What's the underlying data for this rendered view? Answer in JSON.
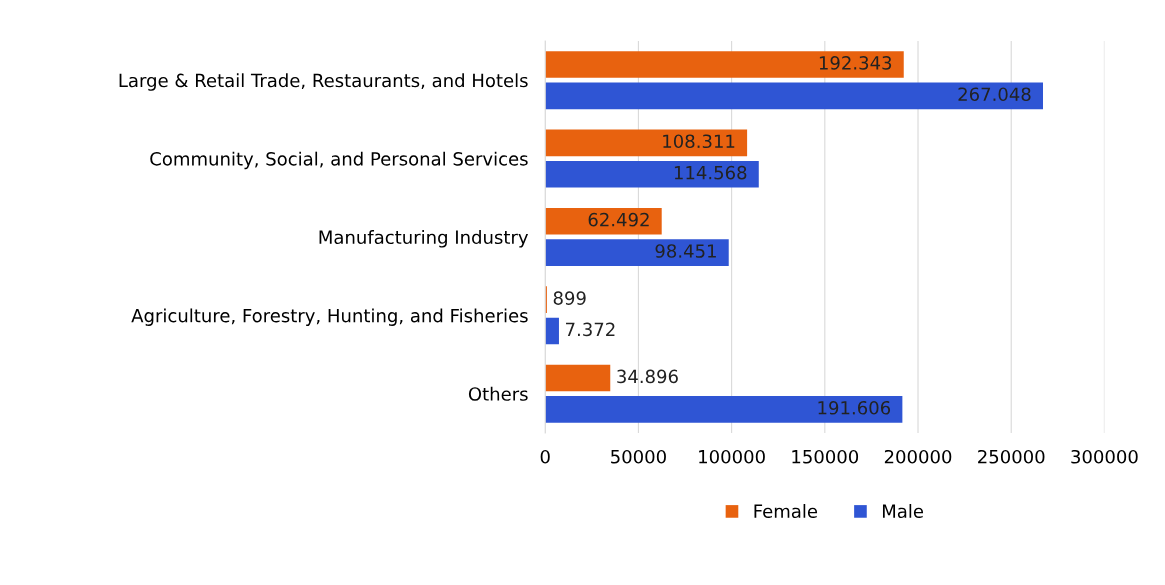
{
  "chart_data": {
    "type": "bar",
    "orientation": "horizontal",
    "categories": [
      "Large & Retail Trade, Restaurants, and Hotels",
      "Community, Social, and Personal Services",
      "Manufacturing Industry",
      "Agriculture, Forestry, Hunting, and Fisheries",
      "Others"
    ],
    "series": [
      {
        "name": "Female",
        "color": "#e8620f",
        "values": [
          192343,
          108311,
          62492,
          899,
          34896
        ],
        "value_labels": [
          "192.343",
          "108.311",
          "62.492",
          "899",
          "34.896"
        ]
      },
      {
        "name": "Male",
        "color": "#2f55d4",
        "values": [
          267048,
          114568,
          98451,
          7372,
          191606
        ],
        "value_labels": [
          "267.048",
          "114.568",
          "98.451",
          "7.372",
          "191.606"
        ]
      }
    ],
    "xlim": [
      0,
      300000
    ],
    "xticks": [
      0,
      50000,
      100000,
      150000,
      200000,
      250000,
      300000
    ],
    "grid": "x",
    "legend": "bottom"
  }
}
